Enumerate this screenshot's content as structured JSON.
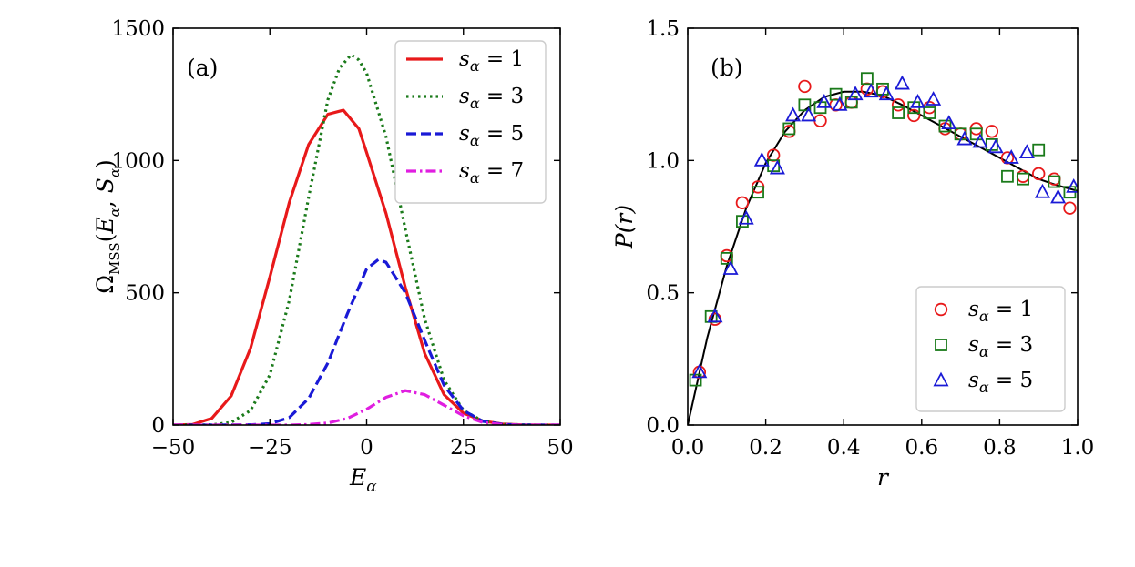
{
  "chart_data": [
    {
      "type": "line",
      "panel_label": "(a)",
      "xlabel": "E_α",
      "ylabel": "Ω_MSS(E_α, S_α)",
      "xlim": [
        -50,
        50
      ],
      "ylim": [
        0,
        1500
      ],
      "xticks": [
        -50,
        -25,
        0,
        25,
        50
      ],
      "yticks": [
        0,
        500,
        1000,
        1500
      ],
      "xtick_labels": [
        "−50",
        "−25",
        "0",
        "25",
        "50"
      ],
      "ytick_labels": [
        "0",
        "500",
        "1000",
        "1500"
      ],
      "legend_position": "top-right",
      "series": [
        {
          "name": "s_α = 1",
          "legend_label": "s",
          "legend_value": "1",
          "color": "#e8191a",
          "style": "solid",
          "x": [
            -50,
            -45,
            -40,
            -35,
            -30,
            -25,
            -20,
            -15,
            -10,
            -6,
            -2,
            0,
            5,
            10,
            15,
            20,
            25,
            30,
            35,
            40,
            45,
            50
          ],
          "y": [
            0,
            2,
            25,
            110,
            290,
            560,
            840,
            1060,
            1175,
            1190,
            1120,
            1030,
            800,
            520,
            270,
            115,
            45,
            15,
            4,
            1,
            0,
            0
          ]
        },
        {
          "name": "s_α = 3",
          "legend_label": "s",
          "legend_value": "3",
          "color": "#1a7a1a",
          "style": "dotted",
          "x": [
            -50,
            -45,
            -40,
            -35,
            -30,
            -25,
            -20,
            -15,
            -10,
            -7,
            -4,
            -2,
            0,
            5,
            10,
            15,
            20,
            25,
            30,
            35,
            40,
            45,
            50
          ],
          "y": [
            0,
            0,
            1,
            10,
            55,
            190,
            470,
            860,
            1230,
            1350,
            1400,
            1380,
            1330,
            1090,
            740,
            400,
            170,
            55,
            15,
            3,
            1,
            0,
            0
          ]
        },
        {
          "name": "s_α = 5",
          "legend_label": "s",
          "legend_value": "5",
          "color": "#1a1ad6",
          "style": "dashed",
          "x": [
            -50,
            -40,
            -30,
            -25,
            -20,
            -15,
            -10,
            -5,
            0,
            3,
            5,
            10,
            15,
            20,
            25,
            30,
            35,
            40,
            50
          ],
          "y": [
            0,
            0,
            1,
            5,
            28,
            100,
            235,
            420,
            590,
            625,
            615,
            500,
            320,
            150,
            55,
            14,
            3,
            0,
            0
          ]
        },
        {
          "name": "s_α = 7",
          "legend_label": "s",
          "legend_value": "7",
          "color": "#e01ee0",
          "style": "dashdot",
          "x": [
            -50,
            -30,
            -20,
            -15,
            -10,
            -5,
            0,
            5,
            10,
            15,
            20,
            25,
            30,
            35,
            40,
            50
          ],
          "y": [
            0,
            0,
            0,
            2,
            8,
            25,
            60,
            105,
            130,
            115,
            75,
            35,
            10,
            2,
            0,
            0
          ]
        }
      ]
    },
    {
      "type": "scatter",
      "panel_label": "(b)",
      "xlabel": "r",
      "ylabel": "P(r)",
      "xlim": [
        0.0,
        1.0
      ],
      "ylim": [
        0.0,
        1.5
      ],
      "xticks": [
        0.0,
        0.2,
        0.4,
        0.6,
        0.8,
        1.0
      ],
      "yticks": [
        0.0,
        0.5,
        1.0,
        1.5
      ],
      "xtick_labels": [
        "0.0",
        "0.2",
        "0.4",
        "0.6",
        "0.8",
        "1.0"
      ],
      "ytick_labels": [
        "0.0",
        "0.5",
        "1.0",
        "1.5"
      ],
      "legend_position": "bottom-right",
      "reference_curve": {
        "color": "#000000",
        "x": [
          0.0,
          0.05,
          0.1,
          0.15,
          0.2,
          0.25,
          0.3,
          0.35,
          0.4,
          0.45,
          0.5,
          0.55,
          0.6,
          0.65,
          0.7,
          0.75,
          0.8,
          0.85,
          0.9,
          0.95,
          1.0
        ],
        "y": [
          0.0,
          0.33,
          0.6,
          0.82,
          0.99,
          1.11,
          1.19,
          1.24,
          1.26,
          1.26,
          1.245,
          1.21,
          1.17,
          1.13,
          1.09,
          1.05,
          1.01,
          0.97,
          0.93,
          0.905,
          0.885
        ]
      },
      "series": [
        {
          "name": "s_α = 1",
          "legend_label": "s",
          "legend_value": "1",
          "marker": "circle",
          "color": "#e8191a",
          "x": [
            0.03,
            0.07,
            0.1,
            0.14,
            0.18,
            0.22,
            0.26,
            0.3,
            0.34,
            0.38,
            0.42,
            0.46,
            0.5,
            0.54,
            0.58,
            0.62,
            0.66,
            0.7,
            0.74,
            0.78,
            0.82,
            0.86,
            0.9,
            0.94,
            0.98
          ],
          "y": [
            0.2,
            0.4,
            0.64,
            0.84,
            0.9,
            1.02,
            1.11,
            1.28,
            1.15,
            1.21,
            1.22,
            1.27,
            1.26,
            1.21,
            1.17,
            1.2,
            1.12,
            1.1,
            1.12,
            1.11,
            1.01,
            0.94,
            0.95,
            0.93,
            0.82
          ]
        },
        {
          "name": "s_α = 3",
          "legend_label": "s",
          "legend_value": "3",
          "marker": "square",
          "color": "#1a7a1a",
          "x": [
            0.02,
            0.06,
            0.1,
            0.14,
            0.18,
            0.22,
            0.26,
            0.3,
            0.34,
            0.38,
            0.42,
            0.46,
            0.5,
            0.54,
            0.58,
            0.62,
            0.66,
            0.7,
            0.74,
            0.78,
            0.82,
            0.86,
            0.9,
            0.94,
            0.98
          ],
          "y": [
            0.17,
            0.41,
            0.63,
            0.77,
            0.88,
            0.98,
            1.12,
            1.21,
            1.2,
            1.25,
            1.22,
            1.31,
            1.27,
            1.18,
            1.2,
            1.18,
            1.13,
            1.1,
            1.1,
            1.06,
            0.94,
            0.93,
            1.04,
            0.92,
            0.88
          ]
        },
        {
          "name": "s_α = 5",
          "legend_label": "s",
          "legend_value": "5",
          "marker": "triangle",
          "color": "#1a1ad6",
          "x": [
            0.03,
            0.07,
            0.11,
            0.15,
            0.19,
            0.23,
            0.27,
            0.31,
            0.35,
            0.39,
            0.43,
            0.47,
            0.51,
            0.55,
            0.59,
            0.63,
            0.67,
            0.71,
            0.75,
            0.79,
            0.83,
            0.87,
            0.91,
            0.95,
            0.99
          ],
          "y": [
            0.2,
            0.41,
            0.59,
            0.78,
            1.0,
            0.97,
            1.17,
            1.17,
            1.22,
            1.21,
            1.25,
            1.26,
            1.25,
            1.29,
            1.22,
            1.23,
            1.14,
            1.08,
            1.07,
            1.05,
            1.01,
            1.03,
            0.88,
            0.86,
            0.9
          ]
        }
      ]
    }
  ]
}
